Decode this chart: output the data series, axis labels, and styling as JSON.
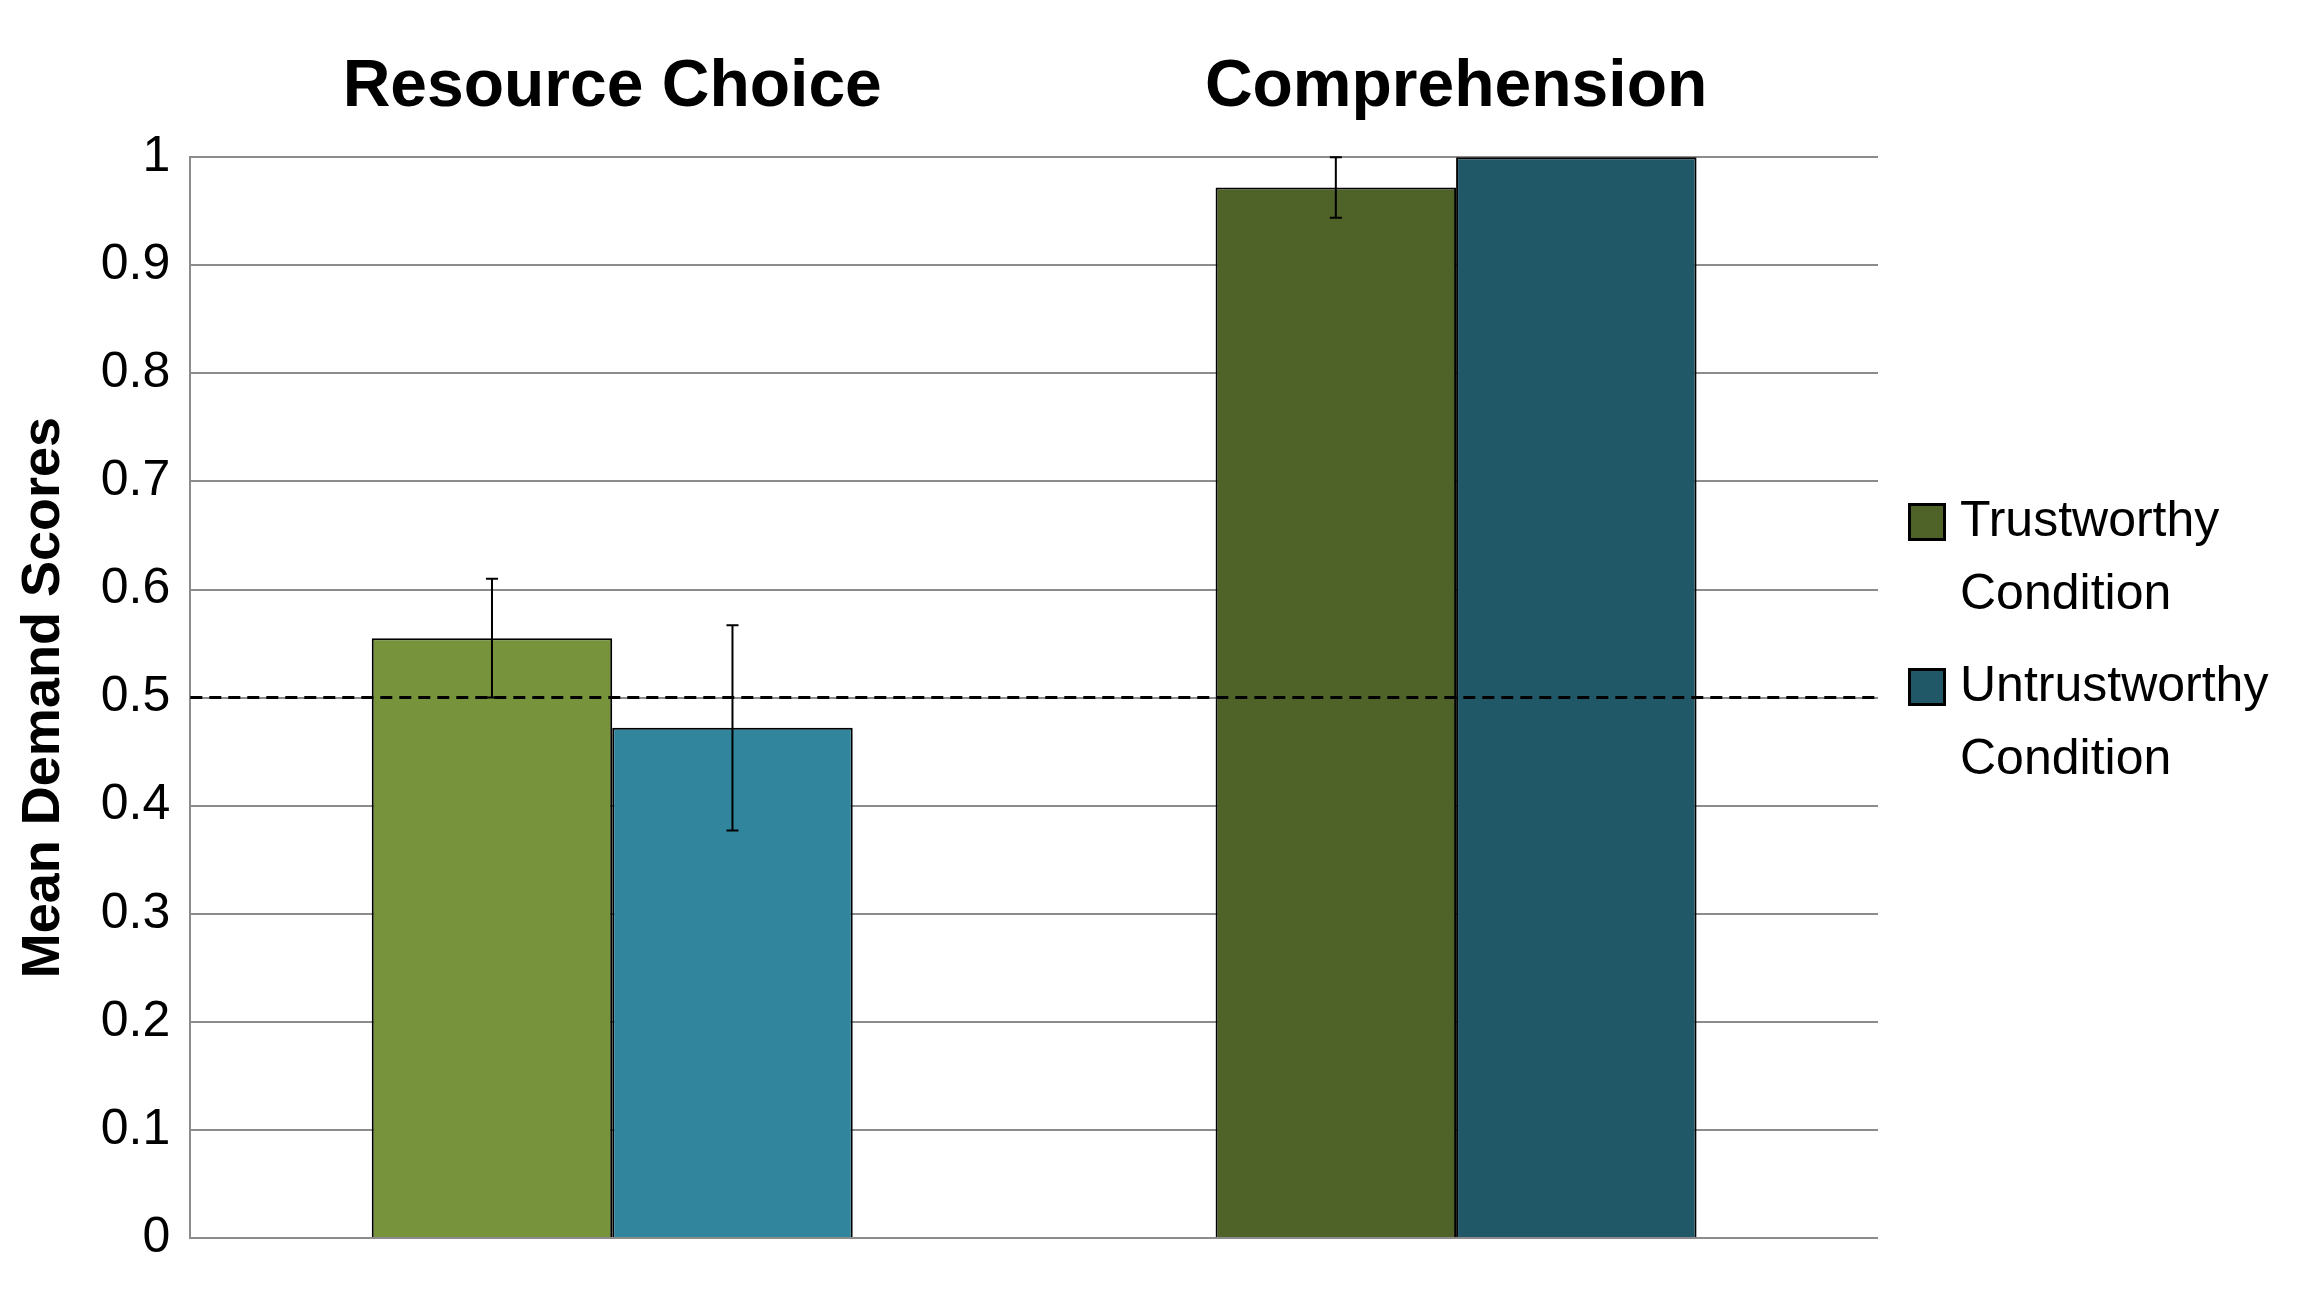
{
  "chart_data": {
    "type": "bar",
    "ylabel": "Mean Demand Scores",
    "categories": [
      "Resource Choice",
      "Comprehension"
    ],
    "series": [
      {
        "name": "Trustworthy Condition",
        "color": "#4f6228",
        "colors": [
          "#77933c",
          "#4f6228"
        ],
        "values": [
          0.555,
          0.972
        ],
        "errors": [
          0.055,
          0.028
        ]
      },
      {
        "name": "Untrustworthy Condition",
        "color": "#215868",
        "colors": [
          "#31859c",
          "#215868"
        ],
        "values": [
          0.472,
          1.0
        ],
        "errors": [
          0.095,
          null
        ]
      }
    ],
    "ylim": [
      0,
      1
    ],
    "yticks": [
      0,
      0.1,
      0.2,
      0.3,
      0.4,
      0.5,
      0.6,
      0.7,
      0.8,
      0.9,
      1
    ],
    "grid": "y",
    "legend": "right",
    "ref_lines": [
      {
        "axis": "y",
        "value": 0.5,
        "color": "#000000",
        "line_style": "dashed"
      }
    ]
  }
}
